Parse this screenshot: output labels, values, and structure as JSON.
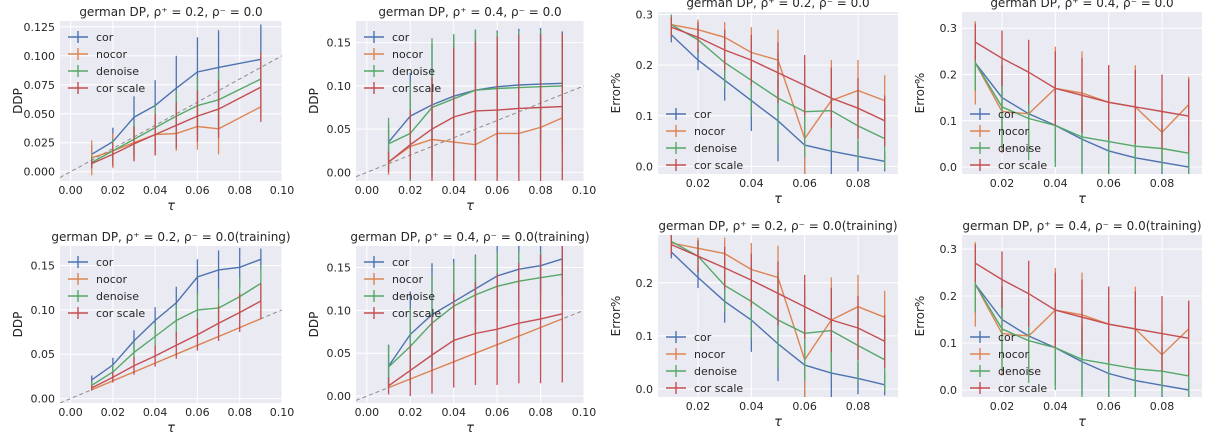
{
  "colors": {
    "cor": "#4c72b0",
    "nocor": "#dd8452",
    "denoise": "#55a868",
    "cor scale": "#c44e52",
    "ref_line": "#8c8c8c",
    "panel_bg": "#eaeaf2",
    "grid": "#ffffff"
  },
  "chart_data": [
    {
      "type": "line",
      "title": "german DP, ρ⁺ = 0.2, ρ⁻ = 0.0",
      "xlabel": "τ",
      "ylabel": "DDP",
      "xlim": [
        -0.005,
        0.1
      ],
      "ylim": [
        -0.008,
        0.13
      ],
      "xticks": [
        "0.00",
        "0.02",
        "0.04",
        "0.06",
        "0.08",
        "0.10"
      ],
      "yticks": [
        "0.000",
        "0.025",
        "0.050",
        "0.075",
        "0.100",
        "0.125"
      ],
      "legend": "top-left",
      "reference_line": true,
      "x": [
        0.01,
        0.02,
        0.03,
        0.04,
        0.05,
        0.06,
        0.07,
        0.09
      ],
      "series": [
        {
          "name": "cor",
          "values": [
            0.015,
            0.026,
            0.047,
            0.057,
            0.072,
            0.086,
            0.09,
            0.097
          ],
          "errors": [
            0.008,
            0.012,
            0.018,
            0.022,
            0.028,
            0.03,
            0.032,
            0.03
          ]
        },
        {
          "name": "nocor",
          "values": [
            0.012,
            0.018,
            0.025,
            0.032,
            0.033,
            0.039,
            0.037,
            0.056
          ],
          "errors": [
            0.015,
            0.015,
            0.015,
            0.018,
            0.015,
            0.02,
            0.022,
            0.01
          ]
        },
        {
          "name": "denoise",
          "values": [
            0.008,
            0.018,
            0.028,
            0.038,
            0.048,
            0.057,
            0.062,
            0.08
          ],
          "errors": [
            0.005,
            0.01,
            0.015,
            0.02,
            0.022,
            0.025,
            0.025,
            0.018
          ]
        },
        {
          "name": "cor scale",
          "values": [
            0.007,
            0.015,
            0.024,
            0.032,
            0.04,
            0.048,
            0.054,
            0.073
          ],
          "errors": [
            0.004,
            0.01,
            0.015,
            0.018,
            0.02,
            0.022,
            0.025,
            0.03
          ]
        }
      ]
    },
    {
      "type": "line",
      "title": "german DP, ρ⁺ = 0.4, ρ⁻ = 0.0",
      "xlabel": "τ",
      "ylabel": "DDP",
      "xlim": [
        -0.005,
        0.1
      ],
      "ylim": [
        -0.01,
        0.175
      ],
      "xticks": [
        "0.00",
        "0.02",
        "0.04",
        "0.06",
        "0.08",
        "0.10"
      ],
      "yticks": [
        "0.00",
        "0.05",
        "0.10",
        "0.15"
      ],
      "legend": "top-left",
      "reference_line": true,
      "x": [
        0.01,
        0.02,
        0.03,
        0.04,
        0.05,
        0.06,
        0.07,
        0.08,
        0.09
      ],
      "series": [
        {
          "name": "cor",
          "values": [
            0.035,
            0.065,
            0.078,
            0.088,
            0.095,
            0.099,
            0.101,
            0.102,
            0.103
          ],
          "errors": [
            0.02,
            0.05,
            0.07,
            0.07,
            0.07,
            0.065,
            0.065,
            0.065,
            0.06
          ]
        },
        {
          "name": "nocor",
          "values": [
            0.012,
            0.03,
            0.038,
            0.035,
            0.032,
            0.045,
            0.045,
            0.052,
            0.063
          ],
          "errors": [
            0.015,
            0.03,
            0.045,
            0.045,
            0.045,
            0.05,
            0.045,
            0.05,
            0.04
          ]
        },
        {
          "name": "denoise",
          "values": [
            0.033,
            0.045,
            0.075,
            0.085,
            0.095,
            0.097,
            0.098,
            0.099,
            0.1
          ],
          "errors": [
            0.03,
            0.06,
            0.08,
            0.075,
            0.07,
            0.065,
            0.065,
            0.065,
            0.06
          ]
        },
        {
          "name": "cor scale",
          "values": [
            0.012,
            0.032,
            0.05,
            0.064,
            0.071,
            0.072,
            0.074,
            0.075,
            0.076
          ],
          "errors": [
            0.012,
            0.04,
            0.06,
            0.08,
            0.08,
            0.085,
            0.085,
            0.085,
            0.085
          ]
        }
      ]
    },
    {
      "type": "line",
      "title": "german DP, ρ⁺ = 0.2, ρ⁻ = 0.0",
      "xlabel": "τ",
      "ylabel": "Error%",
      "xlim": [
        0.005,
        0.095
      ],
      "ylim": [
        -0.015,
        0.305
      ],
      "xticks": [
        "0.02",
        "0.04",
        "0.06",
        "0.08"
      ],
      "yticks": [
        "0.0",
        "0.1",
        "0.2",
        "0.3"
      ],
      "legend": "lower-left",
      "reference_line": false,
      "x": [
        0.01,
        0.02,
        0.03,
        0.04,
        0.05,
        0.06,
        0.07,
        0.08,
        0.09
      ],
      "series": [
        {
          "name": "cor",
          "values": [
            0.26,
            0.21,
            0.17,
            0.13,
            0.09,
            0.042,
            0.03,
            0.02,
            0.01
          ],
          "errors": [
            0.015,
            0.02,
            0.04,
            0.06,
            0.08,
            0.06,
            0.05,
            0.03,
            0.02
          ]
        },
        {
          "name": "nocor",
          "values": [
            0.28,
            0.27,
            0.255,
            0.225,
            0.21,
            0.055,
            0.13,
            0.15,
            0.13
          ],
          "errors": [
            0.02,
            0.02,
            0.03,
            0.05,
            0.06,
            0.08,
            0.08,
            0.06,
            0.05
          ]
        },
        {
          "name": "denoise",
          "values": [
            0.28,
            0.25,
            0.205,
            0.17,
            0.135,
            0.108,
            0.11,
            0.08,
            0.055
          ],
          "errors": [
            0.02,
            0.03,
            0.05,
            0.07,
            0.09,
            0.09,
            0.08,
            0.07,
            0.06
          ]
        },
        {
          "name": "cor scale",
          "values": [
            0.275,
            0.255,
            0.23,
            0.21,
            0.185,
            0.16,
            0.135,
            0.115,
            0.09
          ],
          "errors": [
            0.02,
            0.03,
            0.04,
            0.05,
            0.06,
            0.06,
            0.06,
            0.06,
            0.05
          ]
        }
      ]
    },
    {
      "type": "line",
      "title": "german DP, ρ⁺ = 0.4, ρ⁻ = 0.0",
      "xlabel": "τ",
      "ylabel": "Error%",
      "xlim": [
        0.005,
        0.095
      ],
      "ylim": [
        -0.015,
        0.335
      ],
      "xticks": [
        "0.02",
        "0.04",
        "0.06",
        "0.08"
      ],
      "yticks": [
        "0.0",
        "0.1",
        "0.2",
        "0.3"
      ],
      "legend": "lower-left",
      "reference_line": false,
      "x": [
        0.01,
        0.02,
        0.03,
        0.04,
        0.05,
        0.06,
        0.07,
        0.08,
        0.09
      ],
      "series": [
        {
          "name": "cor",
          "values": [
            0.225,
            0.15,
            0.115,
            0.09,
            0.06,
            0.035,
            0.02,
            0.01,
            0.0
          ],
          "errors": [
            0.06,
            0.07,
            0.08,
            0.08,
            0.07,
            0.05,
            0.04,
            0.03,
            0.03
          ]
        },
        {
          "name": "nocor",
          "values": [
            0.225,
            0.12,
            0.115,
            0.17,
            0.16,
            0.14,
            0.13,
            0.075,
            0.135
          ],
          "errors": [
            0.09,
            0.09,
            0.08,
            0.09,
            0.09,
            0.08,
            0.09,
            0.07,
            0.06
          ]
        },
        {
          "name": "denoise",
          "values": [
            0.225,
            0.13,
            0.105,
            0.09,
            0.065,
            0.055,
            0.045,
            0.04,
            0.03
          ],
          "errors": [
            0.06,
            0.09,
            0.09,
            0.09,
            0.08,
            0.07,
            0.06,
            0.05,
            0.05
          ]
        },
        {
          "name": "cor scale",
          "values": [
            0.27,
            0.235,
            0.205,
            0.17,
            0.155,
            0.14,
            0.13,
            0.12,
            0.11
          ],
          "errors": [
            0.04,
            0.06,
            0.07,
            0.08,
            0.08,
            0.08,
            0.08,
            0.08,
            0.08
          ]
        }
      ]
    },
    {
      "type": "line",
      "title": "german DP, ρ⁺ = 0.2, ρ⁻ = 0.0(training)",
      "xlabel": "τ",
      "ylabel": "DDP",
      "xlim": [
        -0.005,
        0.1
      ],
      "ylim": [
        -0.005,
        0.172
      ],
      "xticks": [
        "0.00",
        "0.02",
        "0.04",
        "0.06",
        "0.08",
        "0.10"
      ],
      "yticks": [
        "0.00",
        "0.05",
        "0.10",
        "0.15"
      ],
      "legend": "top-left",
      "reference_line": true,
      "x": [
        0.01,
        0.02,
        0.03,
        0.04,
        0.05,
        0.06,
        0.07,
        0.08,
        0.09
      ],
      "series": [
        {
          "name": "cor",
          "values": [
            0.021,
            0.038,
            0.065,
            0.088,
            0.108,
            0.137,
            0.145,
            0.148,
            0.157
          ],
          "errors": [
            0.005,
            0.008,
            0.012,
            0.015,
            0.018,
            0.02,
            0.022,
            0.022,
            0.012
          ]
        },
        {
          "name": "nocor",
          "values": [
            0.01,
            0.02,
            0.03,
            0.04,
            0.05,
            0.06,
            0.07,
            0.08,
            0.09
          ],
          "errors": [
            0.001,
            0.001,
            0.001,
            0.001,
            0.001,
            0.001,
            0.001,
            0.001,
            0.001
          ]
        },
        {
          "name": "denoise",
          "values": [
            0.015,
            0.03,
            0.052,
            0.07,
            0.088,
            0.1,
            0.102,
            0.115,
            0.13
          ],
          "errors": [
            0.004,
            0.008,
            0.012,
            0.015,
            0.018,
            0.02,
            0.022,
            0.022,
            0.02
          ]
        },
        {
          "name": "cor scale",
          "values": [
            0.012,
            0.024,
            0.037,
            0.048,
            0.06,
            0.072,
            0.085,
            0.097,
            0.11
          ],
          "errors": [
            0.003,
            0.006,
            0.01,
            0.012,
            0.015,
            0.018,
            0.02,
            0.022,
            0.02
          ]
        }
      ]
    },
    {
      "type": "line",
      "title": "german DP, ρ⁺ = 0.4, ρ⁻ = 0.0(training)",
      "xlabel": "τ",
      "ylabel": "DDP",
      "xlim": [
        -0.005,
        0.1
      ],
      "ylim": [
        -0.008,
        0.175
      ],
      "xticks": [
        "0.00",
        "0.02",
        "0.04",
        "0.06",
        "0.08",
        "0.10"
      ],
      "yticks": [
        "0.00",
        "0.05",
        "0.10",
        "0.15"
      ],
      "legend": "top-left",
      "reference_line": true,
      "x": [
        0.01,
        0.02,
        0.03,
        0.04,
        0.05,
        0.06,
        0.07,
        0.08,
        0.09
      ],
      "series": [
        {
          "name": "cor",
          "values": [
            0.035,
            0.072,
            0.095,
            0.11,
            0.125,
            0.14,
            0.148,
            0.152,
            0.16
          ],
          "errors": [
            0.025,
            0.05,
            0.06,
            0.05,
            0.04,
            0.035,
            0.035,
            0.03,
            0.02
          ]
        },
        {
          "name": "nocor",
          "values": [
            0.01,
            0.02,
            0.03,
            0.04,
            0.05,
            0.06,
            0.07,
            0.08,
            0.09
          ],
          "errors": [
            0.001,
            0.001,
            0.001,
            0.001,
            0.001,
            0.001,
            0.001,
            0.001,
            0.001
          ]
        },
        {
          "name": "denoise",
          "values": [
            0.034,
            0.058,
            0.085,
            0.105,
            0.118,
            0.128,
            0.134,
            0.138,
            0.142
          ],
          "errors": [
            0.025,
            0.045,
            0.055,
            0.05,
            0.045,
            0.04,
            0.035,
            0.03,
            0.025
          ]
        },
        {
          "name": "cor scale",
          "values": [
            0.012,
            0.03,
            0.048,
            0.065,
            0.073,
            0.078,
            0.085,
            0.09,
            0.096
          ],
          "errors": [
            0.01,
            0.03,
            0.045,
            0.055,
            0.06,
            0.065,
            0.07,
            0.075,
            0.08
          ]
        }
      ]
    },
    {
      "type": "line",
      "title": "german DP, ρ⁺ = 0.2, ρ⁻ = 0.0(training)",
      "xlabel": "τ",
      "ylabel": "Error%",
      "xlim": [
        0.005,
        0.095
      ],
      "ylim": [
        -0.015,
        0.29
      ],
      "xticks": [
        "0.02",
        "0.04",
        "0.06",
        "0.08"
      ],
      "yticks": [
        "0.0",
        "0.1",
        "0.2"
      ],
      "legend": "lower-left",
      "reference_line": false,
      "x": [
        0.01,
        0.02,
        0.03,
        0.04,
        0.05,
        0.06,
        0.07,
        0.08,
        0.09
      ],
      "series": [
        {
          "name": "cor",
          "values": [
            0.258,
            0.21,
            0.165,
            0.13,
            0.085,
            0.045,
            0.03,
            0.02,
            0.008
          ],
          "errors": [
            0.012,
            0.02,
            0.04,
            0.06,
            0.07,
            0.06,
            0.05,
            0.03,
            0.02
          ]
        },
        {
          "name": "nocor",
          "values": [
            0.275,
            0.265,
            0.255,
            0.225,
            0.21,
            0.055,
            0.13,
            0.155,
            0.135
          ],
          "errors": [
            0.02,
            0.02,
            0.03,
            0.05,
            0.06,
            0.08,
            0.08,
            0.06,
            0.05
          ]
        },
        {
          "name": "denoise",
          "values": [
            0.278,
            0.25,
            0.195,
            0.165,
            0.13,
            0.105,
            0.11,
            0.082,
            0.055
          ],
          "errors": [
            0.02,
            0.03,
            0.05,
            0.07,
            0.09,
            0.09,
            0.08,
            0.07,
            0.06
          ]
        },
        {
          "name": "cor scale",
          "values": [
            0.272,
            0.25,
            0.228,
            0.205,
            0.18,
            0.155,
            0.13,
            0.115,
            0.09
          ],
          "errors": [
            0.02,
            0.03,
            0.04,
            0.05,
            0.06,
            0.06,
            0.06,
            0.06,
            0.05
          ]
        }
      ]
    },
    {
      "type": "line",
      "title": "german DP, ρ⁺ = 0.4, ρ⁻ = 0.0(training)",
      "xlabel": "τ",
      "ylabel": "Error%",
      "xlim": [
        0.005,
        0.095
      ],
      "ylim": [
        -0.015,
        0.33
      ],
      "xticks": [
        "0.02",
        "0.04",
        "0.06",
        "0.08"
      ],
      "yticks": [
        "0.0",
        "0.1",
        "0.2",
        "0.3"
      ],
      "legend": "lower-left",
      "reference_line": false,
      "x": [
        0.01,
        0.02,
        0.03,
        0.04,
        0.05,
        0.06,
        0.07,
        0.08,
        0.09
      ],
      "series": [
        {
          "name": "cor",
          "values": [
            0.225,
            0.15,
            0.115,
            0.09,
            0.06,
            0.035,
            0.02,
            0.01,
            0.0
          ],
          "errors": [
            0.06,
            0.07,
            0.08,
            0.08,
            0.07,
            0.05,
            0.04,
            0.03,
            0.03
          ]
        },
        {
          "name": "nocor",
          "values": [
            0.225,
            0.12,
            0.115,
            0.17,
            0.16,
            0.14,
            0.13,
            0.075,
            0.13
          ],
          "errors": [
            0.09,
            0.09,
            0.08,
            0.09,
            0.09,
            0.08,
            0.09,
            0.07,
            0.06
          ]
        },
        {
          "name": "denoise",
          "values": [
            0.225,
            0.13,
            0.105,
            0.09,
            0.065,
            0.055,
            0.045,
            0.04,
            0.03
          ],
          "errors": [
            0.06,
            0.09,
            0.09,
            0.09,
            0.08,
            0.07,
            0.06,
            0.05,
            0.05
          ]
        },
        {
          "name": "cor scale",
          "values": [
            0.27,
            0.235,
            0.205,
            0.17,
            0.155,
            0.14,
            0.13,
            0.12,
            0.11
          ],
          "errors": [
            0.04,
            0.06,
            0.07,
            0.08,
            0.08,
            0.08,
            0.08,
            0.08,
            0.08
          ]
        }
      ]
    }
  ]
}
